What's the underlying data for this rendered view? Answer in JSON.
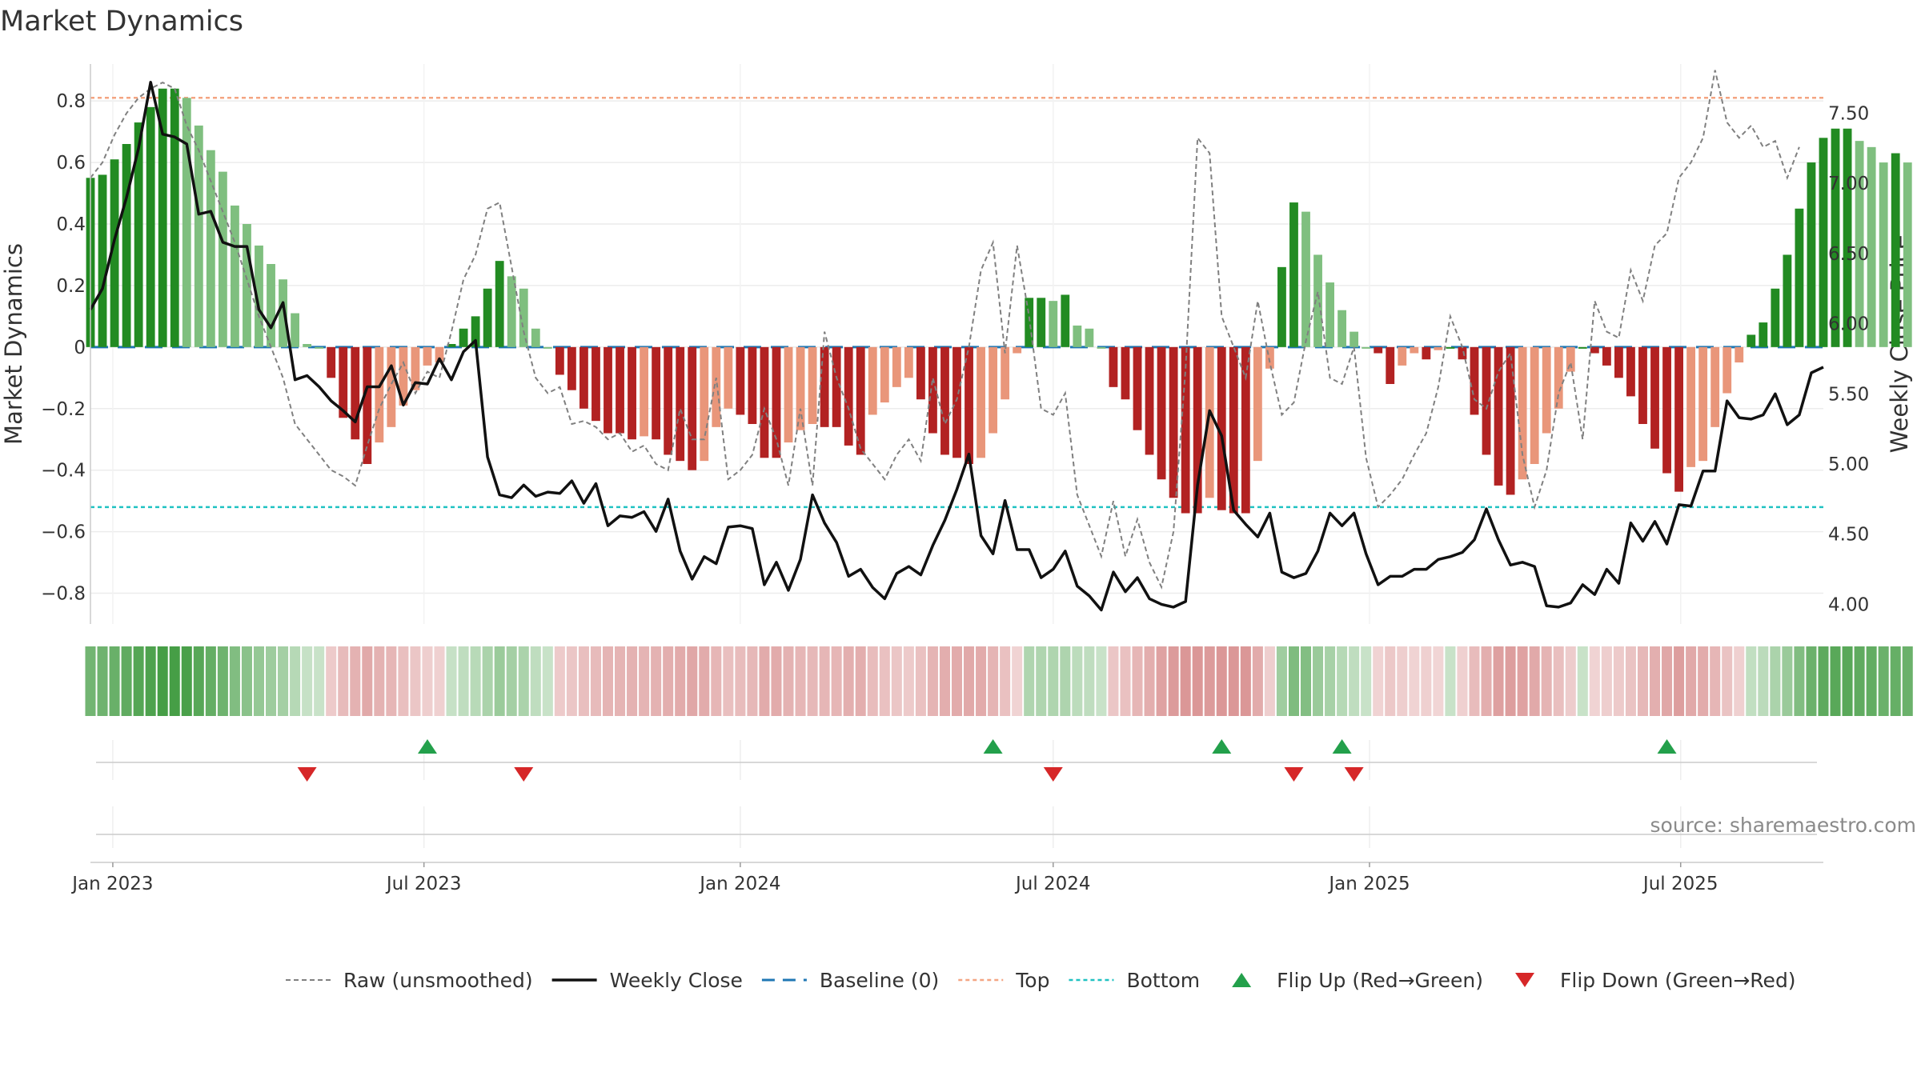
{
  "chart_data": {
    "type": "bar",
    "title": "Market Dynamics",
    "ylabel_left": "Market Dynamics",
    "ylabel_right": "Weekly Close Price",
    "source": "source: sharemaestro.com",
    "left_axis": {
      "ylim": [
        -0.9,
        0.92
      ],
      "ticks": [
        0.8,
        0.6,
        0.4,
        0.2,
        0,
        -0.2,
        -0.4,
        -0.6,
        -0.8
      ],
      "tick_labels": [
        "0.8",
        "0.6",
        "0.4",
        "0.2",
        "0",
        "−0.2",
        "−0.4",
        "−0.6",
        "−0.8"
      ]
    },
    "right_axis": {
      "ylim": [
        3.86,
        7.85
      ],
      "ticks": [
        7.5,
        7.0,
        6.5,
        6.0,
        5.5,
        5.0,
        4.5,
        4.0
      ],
      "tick_labels": [
        "7.50",
        "7.00",
        "6.50",
        "6.00",
        "5.50",
        "5.00",
        "4.50",
        "4.00"
      ]
    },
    "x_axis": {
      "start_date": "2022-12-19",
      "end_date": "2025-09-22",
      "ticks": [
        {
          "date": "2023-01-01",
          "label": "Jan 2023"
        },
        {
          "date": "2023-07-01",
          "label": "Jul 2023"
        },
        {
          "date": "2024-01-01",
          "label": "Jan 2024"
        },
        {
          "date": "2024-07-01",
          "label": "Jul 2024"
        },
        {
          "date": "2025-01-01",
          "label": "Jan 2025"
        },
        {
          "date": "2025-07-01",
          "label": "Jul 2025"
        }
      ]
    },
    "first_week": "2022-12-19",
    "reference_lines": {
      "baseline": 0,
      "top": 0.81,
      "bottom": -0.52
    },
    "weekly_values": [
      0.55,
      0.56,
      0.61,
      0.66,
      0.73,
      0.78,
      0.84,
      0.84,
      0.81,
      0.72,
      0.64,
      0.57,
      0.46,
      0.4,
      0.33,
      0.27,
      0.22,
      0.11,
      0.01,
      0.0,
      -0.1,
      -0.23,
      -0.3,
      -0.38,
      -0.31,
      -0.26,
      -0.19,
      -0.14,
      -0.06,
      -0.05,
      0.01,
      0.06,
      0.1,
      0.19,
      0.28,
      0.23,
      0.19,
      0.06,
      0.0,
      -0.09,
      -0.14,
      -0.2,
      -0.24,
      -0.28,
      -0.28,
      -0.3,
      -0.29,
      -0.3,
      -0.35,
      -0.37,
      -0.4,
      -0.37,
      -0.26,
      -0.2,
      -0.22,
      -0.25,
      -0.36,
      -0.36,
      -0.31,
      -0.27,
      -0.25,
      -0.26,
      -0.26,
      -0.32,
      -0.35,
      -0.22,
      -0.18,
      -0.13,
      -0.1,
      -0.17,
      -0.28,
      -0.35,
      -0.36,
      -0.38,
      -0.36,
      -0.28,
      -0.17,
      -0.02,
      0.16,
      0.16,
      0.15,
      0.17,
      0.07,
      0.06,
      0.0,
      -0.13,
      -0.17,
      -0.27,
      -0.35,
      -0.43,
      -0.49,
      -0.54,
      -0.54,
      -0.49,
      -0.53,
      -0.54,
      -0.54,
      -0.37,
      -0.07,
      0.26,
      0.47,
      0.44,
      0.3,
      0.21,
      0.12,
      0.05,
      0.0,
      -0.02,
      -0.12,
      -0.06,
      -0.02,
      -0.04,
      -0.01,
      0.0,
      -0.04,
      -0.22,
      -0.35,
      -0.45,
      -0.48,
      -0.43,
      -0.38,
      -0.28,
      -0.2,
      -0.08,
      0.0,
      -0.02,
      -0.06,
      -0.1,
      -0.16,
      -0.25,
      -0.33,
      -0.41,
      -0.47,
      -0.39,
      -0.37,
      -0.26,
      -0.15,
      -0.05,
      0.04,
      0.08,
      0.19,
      0.3,
      0.45,
      0.6,
      0.68,
      0.71,
      0.71,
      0.67,
      0.65,
      0.6,
      0.63,
      0.6
    ],
    "weekly_close": [
      6.1,
      6.25,
      6.6,
      6.9,
      7.25,
      7.72,
      7.35,
      7.33,
      7.28,
      6.78,
      6.8,
      6.58,
      6.55,
      6.55,
      6.1,
      5.97,
      6.15,
      5.6,
      5.63,
      5.55,
      5.45,
      5.38,
      5.3,
      5.55,
      5.55,
      5.7,
      5.42,
      5.58,
      5.57,
      5.75,
      5.6,
      5.8,
      5.88,
      5.05,
      4.78,
      4.76,
      4.85,
      4.77,
      4.8,
      4.79,
      4.88,
      4.72,
      4.86,
      4.56,
      4.63,
      4.62,
      4.66,
      4.52,
      4.75,
      4.38,
      4.18,
      4.34,
      4.29,
      4.55,
      4.56,
      4.54,
      4.14,
      4.3,
      4.1,
      4.32,
      4.78,
      4.58,
      4.44,
      4.2,
      4.25,
      4.12,
      4.04,
      4.22,
      4.27,
      4.21,
      4.42,
      4.6,
      4.82,
      5.07,
      4.49,
      4.36,
      4.74,
      4.39,
      4.39,
      4.19,
      4.25,
      4.38,
      4.13,
      4.06,
      3.96,
      4.23,
      4.09,
      4.19,
      4.04,
      4.0,
      3.98,
      4.02,
      4.85,
      5.38,
      5.2,
      4.67,
      4.57,
      4.48,
      4.65,
      4.23,
      4.19,
      4.22,
      4.38,
      4.65,
      4.56,
      4.65,
      4.36,
      4.14,
      4.2,
      4.2,
      4.25,
      4.25,
      4.32,
      4.34,
      4.37,
      4.46,
      4.68,
      4.46,
      4.28,
      4.3,
      4.27,
      3.99,
      3.98,
      4.01,
      4.14,
      4.07,
      4.25,
      4.15,
      4.58,
      4.45,
      4.59,
      4.43,
      4.71,
      4.7,
      4.95,
      4.95,
      5.45,
      5.33,
      5.32,
      5.35,
      5.5,
      5.28,
      5.35,
      5.65,
      5.69
    ],
    "raw_values": [
      0.55,
      0.6,
      0.69,
      0.76,
      0.81,
      0.84,
      0.86,
      0.84,
      0.72,
      0.64,
      0.54,
      0.44,
      0.34,
      0.22,
      0.1,
      0.0,
      -0.1,
      -0.25,
      -0.3,
      -0.35,
      -0.4,
      -0.42,
      -0.45,
      -0.32,
      -0.2,
      -0.12,
      -0.05,
      -0.15,
      -0.08,
      -0.1,
      0.05,
      0.22,
      0.3,
      0.45,
      0.47,
      0.26,
      0.05,
      -0.1,
      -0.15,
      -0.13,
      -0.25,
      -0.24,
      -0.26,
      -0.3,
      -0.28,
      -0.34,
      -0.32,
      -0.38,
      -0.4,
      -0.2,
      -0.3,
      -0.3,
      -0.1,
      -0.43,
      -0.4,
      -0.35,
      -0.2,
      -0.3,
      -0.45,
      -0.2,
      -0.45,
      0.05,
      -0.1,
      -0.2,
      -0.33,
      -0.38,
      -0.43,
      -0.35,
      -0.3,
      -0.37,
      -0.1,
      -0.25,
      -0.17,
      0.0,
      0.25,
      0.34,
      -0.02,
      0.33,
      0.1,
      -0.2,
      -0.22,
      -0.15,
      -0.48,
      -0.58,
      -0.68,
      -0.5,
      -0.68,
      -0.56,
      -0.7,
      -0.78,
      -0.6,
      -0.07,
      0.68,
      0.63,
      0.1,
      0.0,
      -0.1,
      0.15,
      -0.05,
      -0.22,
      -0.18,
      0.02,
      0.18,
      -0.1,
      -0.12,
      0.0,
      -0.36,
      -0.52,
      -0.48,
      -0.43,
      -0.35,
      -0.28,
      -0.13,
      0.1,
      0.0,
      -0.17,
      -0.2,
      -0.08,
      -0.02,
      -0.35,
      -0.52,
      -0.4,
      -0.15,
      -0.05,
      -0.3,
      0.15,
      0.05,
      0.03,
      0.25,
      0.15,
      0.33,
      0.37,
      0.55,
      0.6,
      0.68,
      0.9,
      0.73,
      0.68,
      0.72,
      0.65,
      0.67,
      0.55,
      0.65
    ],
    "flip_up_dates": [
      "2023-07-03",
      "2024-05-27",
      "2024-10-07",
      "2024-12-16",
      "2025-06-23"
    ],
    "flip_down_dates": [
      "2023-04-24",
      "2023-08-28",
      "2024-07-01",
      "2024-11-18",
      "2024-12-23"
    ],
    "colors": {
      "green_strong": "#228b22",
      "green_weak": "#7fbf7f",
      "red_strong": "#b22222",
      "red_weak": "#e9967a",
      "raw_line": "#808080",
      "close_line": "#111111",
      "baseline": "#1f77b4",
      "top": "#f4a582",
      "bottom": "#20c2c2",
      "flip_up": "#23a04b",
      "flip_down": "#d62728"
    },
    "legend": [
      {
        "key": "raw",
        "label": "Raw (unsmoothed)"
      },
      {
        "key": "close",
        "label": "Weekly Close"
      },
      {
        "key": "baseline",
        "label": "Baseline (0)"
      },
      {
        "key": "top",
        "label": "Top"
      },
      {
        "key": "bottom",
        "label": "Bottom"
      },
      {
        "key": "flip_up",
        "label": "Flip Up (Red→Green)"
      },
      {
        "key": "flip_down",
        "label": "Flip Down (Green→Red)"
      }
    ]
  }
}
